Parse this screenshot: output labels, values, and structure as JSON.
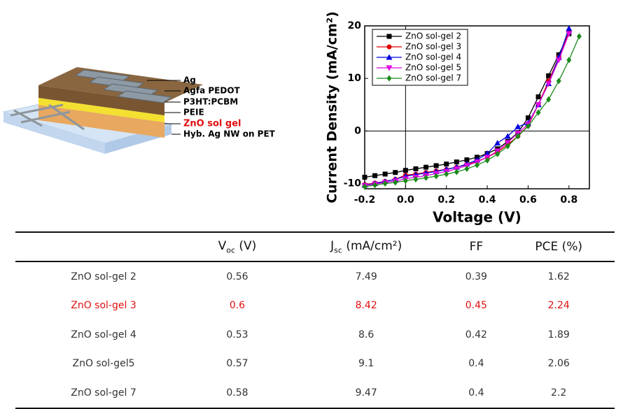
{
  "diagram": {
    "labels": [
      "Ag",
      "Agfa PEDOT",
      "P3HT:PCBM",
      "PEIE",
      "ZnO sol gel",
      "Hyb. Ag NW on PET"
    ],
    "highlight_label": 4,
    "highlight_color": "#e01010"
  },
  "chart_data": {
    "type": "line",
    "x_label": "Voltage (V)",
    "y_label": "Current Density (mA/cm²)",
    "x": [
      -0.2,
      -0.15,
      -0.1,
      -0.05,
      0,
      0.05,
      0.1,
      0.15,
      0.2,
      0.25,
      0.3,
      0.35,
      0.4,
      0.45,
      0.5,
      0.55,
      0.6,
      0.65,
      0.7,
      0.75,
      0.8,
      0.85
    ],
    "series": [
      {
        "name": "ZnO sol-gel 2",
        "color": "#000000",
        "marker": "square",
        "values": [
          -8.8,
          -8.5,
          -8.2,
          -7.9,
          -7.5,
          -7.2,
          -6.9,
          -6.6,
          -6.3,
          -5.9,
          -5.5,
          -5.0,
          -4.3,
          -3.4,
          -2.0,
          -0.3,
          2.5,
          6.5,
          10.5,
          14.5,
          18.5,
          null
        ]
      },
      {
        "name": "ZnO sol-gel 3",
        "color": "#e00000",
        "marker": "circle",
        "values": [
          -10.2,
          -9.9,
          -9.6,
          -9.2,
          -8.4,
          -8.2,
          -7.9,
          -7.6,
          -7.3,
          -6.9,
          -6.4,
          -5.8,
          -5.0,
          -4.0,
          -2.6,
          -1.0,
          1.0,
          5.0,
          9.5,
          14.0,
          19.0,
          null
        ]
      },
      {
        "name": "ZnO sol-gel 4",
        "color": "#0000e0",
        "marker": "triangle-up",
        "values": [
          -10.3,
          -10.0,
          -9.6,
          -9.2,
          -8.6,
          -8.3,
          -8.0,
          -7.7,
          -7.3,
          -6.9,
          -6.3,
          -5.5,
          -4.3,
          -2.3,
          -1.0,
          0.8,
          1.5,
          5.0,
          9.0,
          14.0,
          19.5,
          null
        ]
      },
      {
        "name": "ZnO sol-gel 5",
        "color": "#e000e0",
        "marker": "triangle-down",
        "values": [
          -10.4,
          -10.1,
          -9.8,
          -9.5,
          -9.1,
          -8.8,
          -8.5,
          -8.1,
          -7.7,
          -7.2,
          -6.6,
          -5.9,
          -5.0,
          -3.8,
          -2.2,
          -0.4,
          1.3,
          5.0,
          9.0,
          13.5,
          18.5,
          null
        ]
      },
      {
        "name": "ZnO sol-gel 7",
        "color": "#1a8a1a",
        "marker": "diamond",
        "values": [
          -10.6,
          -10.3,
          -10.0,
          -9.8,
          -9.47,
          -9.2,
          -8.9,
          -8.6,
          -8.2,
          -7.8,
          -7.2,
          -6.5,
          -5.6,
          -4.4,
          -2.9,
          -1.0,
          0.9,
          3.5,
          6.0,
          9.5,
          13.5,
          18.0
        ]
      }
    ],
    "xlim": [
      -0.2,
      0.9
    ],
    "ylim": [
      -11,
      20
    ],
    "xticks": [
      -0.2,
      {
        "value": 0,
        "label": "0.0"
      },
      0.2,
      0.4,
      0.6,
      0.8
    ],
    "yticks": [
      -10,
      0,
      10,
      20
    ],
    "zero_lines": true,
    "legend": "top-left"
  },
  "table": {
    "headers": [
      {
        "base": "V",
        "sub": "oc",
        "rest": "(V)"
      },
      {
        "base": "J",
        "sub": "sc",
        "rest": "(mA/cm²)"
      },
      {
        "base": "FF"
      },
      {
        "base": "PCE (%)"
      }
    ],
    "rows": [
      {
        "cells": [
          "ZnO sol-gel 2",
          0.56,
          7.49,
          0.39,
          1.62
        ],
        "color": "#333333"
      },
      {
        "cells": [
          "ZnO sol-gel 3",
          0.6,
          8.42,
          0.45,
          2.24
        ],
        "color": "#e01010"
      },
      {
        "cells": [
          "ZnO sol-gel 4",
          0.53,
          8.6,
          0.42,
          1.89
        ],
        "color": "#333333"
      },
      {
        "cells": [
          "ZnO sol-gel5",
          0.57,
          9.1,
          0.4,
          2.06
        ],
        "color": "#333333"
      },
      {
        "cells": [
          "ZnO sol-gel 7",
          0.58,
          9.47,
          0.4,
          2.2
        ],
        "color": "#333333"
      }
    ]
  }
}
